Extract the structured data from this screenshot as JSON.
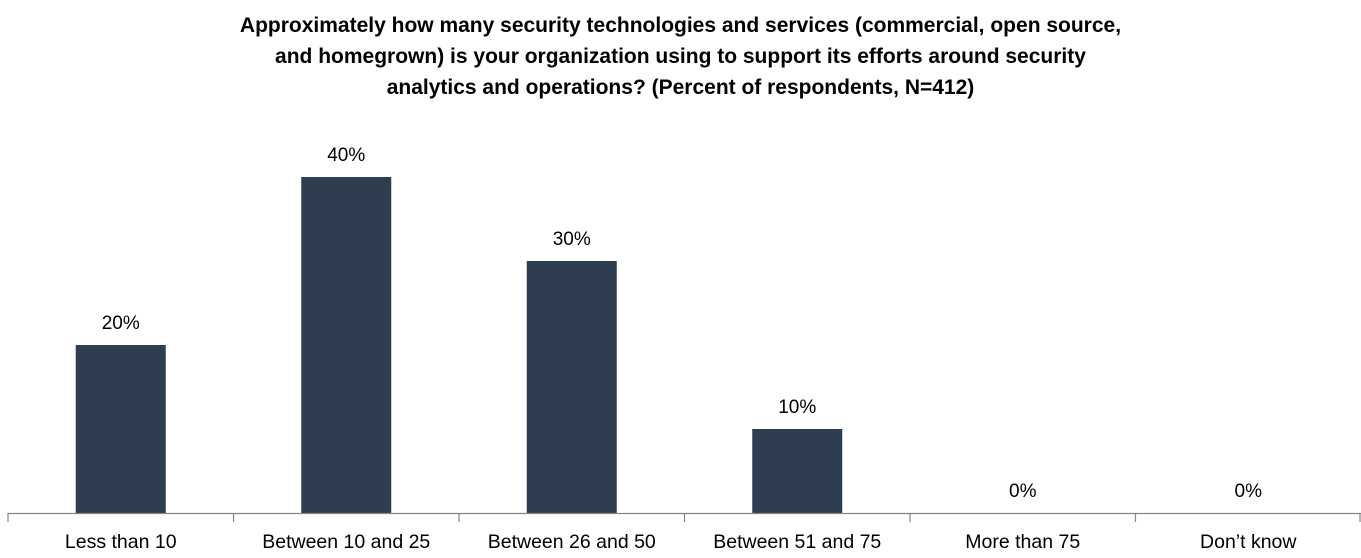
{
  "chart_data": {
    "type": "bar",
    "title_lines": [
      "Approximately how many security technologies and services (commercial, open source,",
      "and homegrown) is your organization using to support its efforts around security",
      "analytics and operations? (Percent of respondents, N=412)"
    ],
    "categories": [
      "Less than 10",
      "Between 10 and 25",
      "Between 26 and 50",
      "Between 51 and 75",
      "More than 75",
      "Don’t know"
    ],
    "values": [
      20,
      40,
      30,
      10,
      0,
      0
    ],
    "value_labels": [
      "20%",
      "40%",
      "30%",
      "10%",
      "0%",
      "0%"
    ],
    "unit": "%",
    "ylim": [
      0,
      40
    ],
    "grid": false,
    "legend": "none",
    "bar_color": "#2e3e50",
    "axis_color": "#868686"
  }
}
